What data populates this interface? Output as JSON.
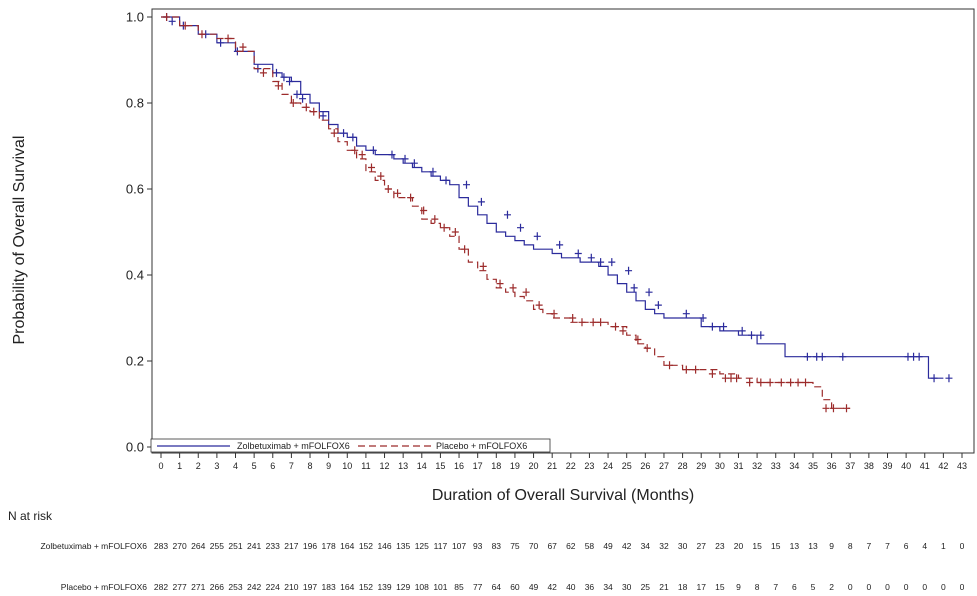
{
  "chart_data": {
    "type": "line",
    "subtype": "kaplan-meier",
    "xlabel": "Duration of Overall Survival (Months)",
    "ylabel": "Probability of Overall Survival",
    "xlim": [
      0,
      43
    ],
    "ylim": [
      0.0,
      1.0
    ],
    "xticks": [
      0,
      1,
      2,
      3,
      4,
      5,
      6,
      7,
      8,
      9,
      10,
      11,
      12,
      13,
      14,
      15,
      16,
      17,
      18,
      19,
      20,
      21,
      22,
      23,
      24,
      25,
      26,
      27,
      28,
      29,
      30,
      31,
      32,
      33,
      34,
      35,
      36,
      37,
      38,
      39,
      40,
      41,
      42,
      43
    ],
    "yticks": [
      0.0,
      0.2,
      0.4,
      0.6,
      0.8,
      1.0
    ],
    "ytick_labels": [
      "0.0",
      "0.2",
      "0.4",
      "0.6",
      "0.8",
      "1.0"
    ],
    "legend_position": "bottom-left",
    "series": [
      {
        "name": "Zolbetuximab + mFOLFOX6",
        "color": "#2b2b9c",
        "dash": "solid",
        "x": [
          0,
          1,
          2,
          3,
          4,
          5,
          6,
          6.5,
          7,
          7.5,
          8,
          8.5,
          9,
          9.5,
          10,
          10.5,
          11,
          11.5,
          12,
          12.5,
          13,
          13.5,
          14,
          14.5,
          15,
          15.5,
          16,
          16.5,
          17,
          17.5,
          18,
          18.5,
          19,
          19.5,
          20,
          20.5,
          21,
          21.5,
          22,
          22.5,
          23,
          23.5,
          24,
          24.5,
          25,
          25.5,
          26,
          26.5,
          27,
          28,
          29,
          30,
          31,
          32,
          33,
          33.5,
          34,
          35,
          36,
          37,
          38,
          39,
          40,
          41,
          41.2,
          42
        ],
        "y": [
          1.0,
          0.98,
          0.96,
          0.94,
          0.92,
          0.89,
          0.87,
          0.86,
          0.85,
          0.82,
          0.8,
          0.78,
          0.75,
          0.73,
          0.72,
          0.7,
          0.69,
          0.68,
          0.68,
          0.67,
          0.66,
          0.65,
          0.64,
          0.63,
          0.62,
          0.61,
          0.58,
          0.56,
          0.54,
          0.52,
          0.5,
          0.49,
          0.48,
          0.47,
          0.46,
          0.46,
          0.45,
          0.44,
          0.44,
          0.43,
          0.43,
          0.42,
          0.4,
          0.38,
          0.36,
          0.34,
          0.32,
          0.31,
          0.3,
          0.3,
          0.28,
          0.27,
          0.26,
          0.24,
          0.24,
          0.21,
          0.21,
          0.21,
          0.21,
          0.21,
          0.21,
          0.21,
          0.21,
          0.21,
          0.16,
          0.16
        ],
        "censor_x": [
          0.3,
          0.6,
          1.2,
          2.4,
          3.2,
          4.1,
          5.2,
          6.2,
          6.6,
          6.9,
          7.3,
          7.6,
          8.7,
          9.8,
          10.3,
          11.4,
          12.4,
          13.1,
          13.6,
          14.6,
          15.3,
          16.4,
          17.2,
          18.6,
          19.3,
          20.2,
          21.4,
          22.4,
          23.1,
          23.6,
          24.2,
          25.1,
          25.4,
          26.2,
          26.7,
          28.2,
          29.1,
          29.6,
          30.2,
          31.2,
          31.7,
          32.2,
          34.7,
          35.2,
          35.5,
          36.6,
          40.1,
          40.4,
          40.7,
          41.5,
          42.3
        ],
        "censor_y": [
          1.0,
          0.99,
          0.98,
          0.96,
          0.94,
          0.92,
          0.88,
          0.87,
          0.86,
          0.85,
          0.82,
          0.81,
          0.77,
          0.73,
          0.72,
          0.69,
          0.68,
          0.67,
          0.66,
          0.64,
          0.62,
          0.61,
          0.57,
          0.54,
          0.51,
          0.49,
          0.47,
          0.45,
          0.44,
          0.43,
          0.43,
          0.41,
          0.37,
          0.36,
          0.33,
          0.31,
          0.3,
          0.28,
          0.28,
          0.27,
          0.26,
          0.26,
          0.21,
          0.21,
          0.21,
          0.21,
          0.21,
          0.21,
          0.21,
          0.16,
          0.16
        ]
      },
      {
        "name": "Placebo + mFOLFOX6",
        "color": "#9c2b2b",
        "dash": "dashed",
        "x": [
          0,
          1,
          2,
          3,
          4,
          5,
          6,
          6.5,
          7,
          7.5,
          8,
          8.5,
          9,
          9.5,
          10,
          10.5,
          11,
          11.5,
          12,
          12.5,
          13,
          13.5,
          14,
          14.5,
          15,
          15.5,
          16,
          16.5,
          17,
          17.5,
          18,
          18.5,
          19,
          19.5,
          20,
          20.5,
          21,
          21.5,
          22,
          22.5,
          23,
          24,
          25,
          25.5,
          26,
          26.5,
          27,
          28,
          29,
          30,
          31,
          32,
          33,
          34,
          35,
          35.5,
          36,
          37
        ],
        "y": [
          1.0,
          0.98,
          0.96,
          0.95,
          0.92,
          0.88,
          0.85,
          0.82,
          0.8,
          0.79,
          0.78,
          0.76,
          0.74,
          0.71,
          0.69,
          0.67,
          0.64,
          0.62,
          0.6,
          0.58,
          0.58,
          0.56,
          0.53,
          0.52,
          0.51,
          0.49,
          0.46,
          0.43,
          0.41,
          0.39,
          0.37,
          0.36,
          0.35,
          0.34,
          0.32,
          0.31,
          0.3,
          0.3,
          0.29,
          0.29,
          0.29,
          0.28,
          0.26,
          0.24,
          0.23,
          0.21,
          0.19,
          0.18,
          0.18,
          0.17,
          0.16,
          0.15,
          0.15,
          0.15,
          0.14,
          0.11,
          0.09,
          0.09
        ],
        "censor_x": [
          0.3,
          1.3,
          2.2,
          3.6,
          4.4,
          5.5,
          6.3,
          7.1,
          7.8,
          8.2,
          9.3,
          10.4,
          10.8,
          11.3,
          11.8,
          12.2,
          12.7,
          13.4,
          14.1,
          14.7,
          15.2,
          15.8,
          16.3,
          17.3,
          18.2,
          18.9,
          19.6,
          20.3,
          21.1,
          22.1,
          22.6,
          23.2,
          23.6,
          24.4,
          24.8,
          25.6,
          26.1,
          27.3,
          28.2,
          28.7,
          29.6,
          30.3,
          30.6,
          30.9,
          31.6,
          32.2,
          32.7,
          33.3,
          33.8,
          34.2,
          34.6,
          35.7,
          36.1,
          36.8
        ],
        "censor_y": [
          1.0,
          0.98,
          0.96,
          0.95,
          0.93,
          0.87,
          0.84,
          0.8,
          0.79,
          0.78,
          0.73,
          0.69,
          0.68,
          0.65,
          0.63,
          0.6,
          0.59,
          0.58,
          0.55,
          0.53,
          0.51,
          0.5,
          0.46,
          0.42,
          0.38,
          0.37,
          0.36,
          0.33,
          0.31,
          0.3,
          0.29,
          0.29,
          0.29,
          0.28,
          0.27,
          0.25,
          0.23,
          0.19,
          0.18,
          0.18,
          0.17,
          0.16,
          0.16,
          0.16,
          0.15,
          0.15,
          0.15,
          0.15,
          0.15,
          0.15,
          0.15,
          0.09,
          0.09,
          0.09
        ]
      }
    ],
    "risk_table": {
      "title": "N at risk",
      "rows": [
        {
          "label": "Zolbetuximab + mFOLFOX6",
          "values": [
            "283",
            "270",
            "264",
            "255",
            "251",
            "241",
            "233",
            "217",
            "196",
            "178",
            "164",
            "152",
            "146",
            "135",
            "125",
            "117",
            "107",
            "93",
            "83",
            "75",
            "70",
            "67",
            "62",
            "58",
            "49",
            "42",
            "34",
            "32",
            "30",
            "27",
            "23",
            "20",
            "15",
            "15",
            "13",
            "13",
            "9",
            "8",
            "7",
            "7",
            "6",
            "4",
            "1",
            "0"
          ]
        },
        {
          "label": "Placebo + mFOLFOX6",
          "values": [
            "282",
            "277",
            "271",
            "266",
            "253",
            "242",
            "224",
            "210",
            "197",
            "183",
            "164",
            "152",
            "139",
            "129",
            "108",
            "101",
            "85",
            "77",
            "64",
            "60",
            "49",
            "42",
            "40",
            "36",
            "34",
            "30",
            "25",
            "21",
            "18",
            "17",
            "15",
            "9",
            "8",
            "7",
            "6",
            "5",
            "2",
            "0",
            "0",
            "0",
            "0",
            "0",
            "0",
            "0"
          ]
        }
      ]
    }
  }
}
